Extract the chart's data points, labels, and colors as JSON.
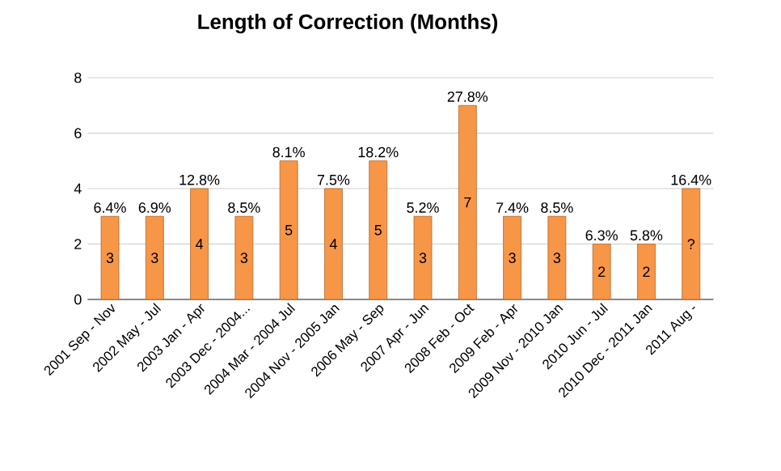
{
  "chart_data": {
    "type": "bar",
    "title": "Length of Correction (Months)",
    "categories": [
      "2001 Sep - Nov",
      "2002 May - Jul",
      "2003 Jan - Apr",
      "2003 Dec - 2004...",
      "2004 Mar - 2004 Jul",
      "2004 Nov - 2005 Jan",
      "2006 May - Sep",
      "2007 Apr - Jun",
      "2008 Feb - Oct",
      "2009 Feb - Apr",
      "2009 Nov - 2010 Jan",
      "2010 Jun - Jul",
      "2010 Dec - 2011 Jan",
      "2011 Aug -"
    ],
    "values": [
      3,
      3,
      4,
      3,
      5,
      4,
      5,
      3,
      7,
      3,
      3,
      2,
      2,
      4
    ],
    "value_labels": [
      "3",
      "3",
      "4",
      "3",
      "5",
      "4",
      "5",
      "3",
      "7",
      "3",
      "3",
      "2",
      "2",
      "?"
    ],
    "color": "#f79646",
    "ylim": [
      0,
      8
    ],
    "yticks": [
      0,
      2,
      4,
      6,
      8
    ],
    "grid": "y",
    "annotations": [
      {
        "text": "6.4%",
        "x": "2001 Sep - Nov",
        "y": 3
      },
      {
        "text": "6.9%",
        "x": "2002 May - Jul",
        "y": 3
      },
      {
        "text": "12.8%",
        "x": "2003 Jan - Apr",
        "y": 4
      },
      {
        "text": "8.5%",
        "x": "2003 Dec - 2004...",
        "y": 3
      },
      {
        "text": "8.1%",
        "x": "2004 Mar - 2004 Jul",
        "y": 5
      },
      {
        "text": "7.5%",
        "x": "2004 Nov - 2005 Jan",
        "y": 4
      },
      {
        "text": "18.2%",
        "x": "2006 May - Sep",
        "y": 5
      },
      {
        "text": "5.2%",
        "x": "2007 Apr - Jun",
        "y": 3
      },
      {
        "text": "27.8%",
        "x": "2008 Feb - Oct",
        "y": 7
      },
      {
        "text": "7.4%",
        "x": "2009 Feb - Apr",
        "y": 3
      },
      {
        "text": "8.5%",
        "x": "2009 Nov - 2010 Jan",
        "y": 3
      },
      {
        "text": "6.3%",
        "x": "2010 Jun - Jul",
        "y": 2
      },
      {
        "text": "5.8%",
        "x": "2010 Dec - 2011 Jan",
        "y": 2
      },
      {
        "text": "16.4%",
        "x": "2011 Aug -",
        "y": 4
      }
    ]
  }
}
